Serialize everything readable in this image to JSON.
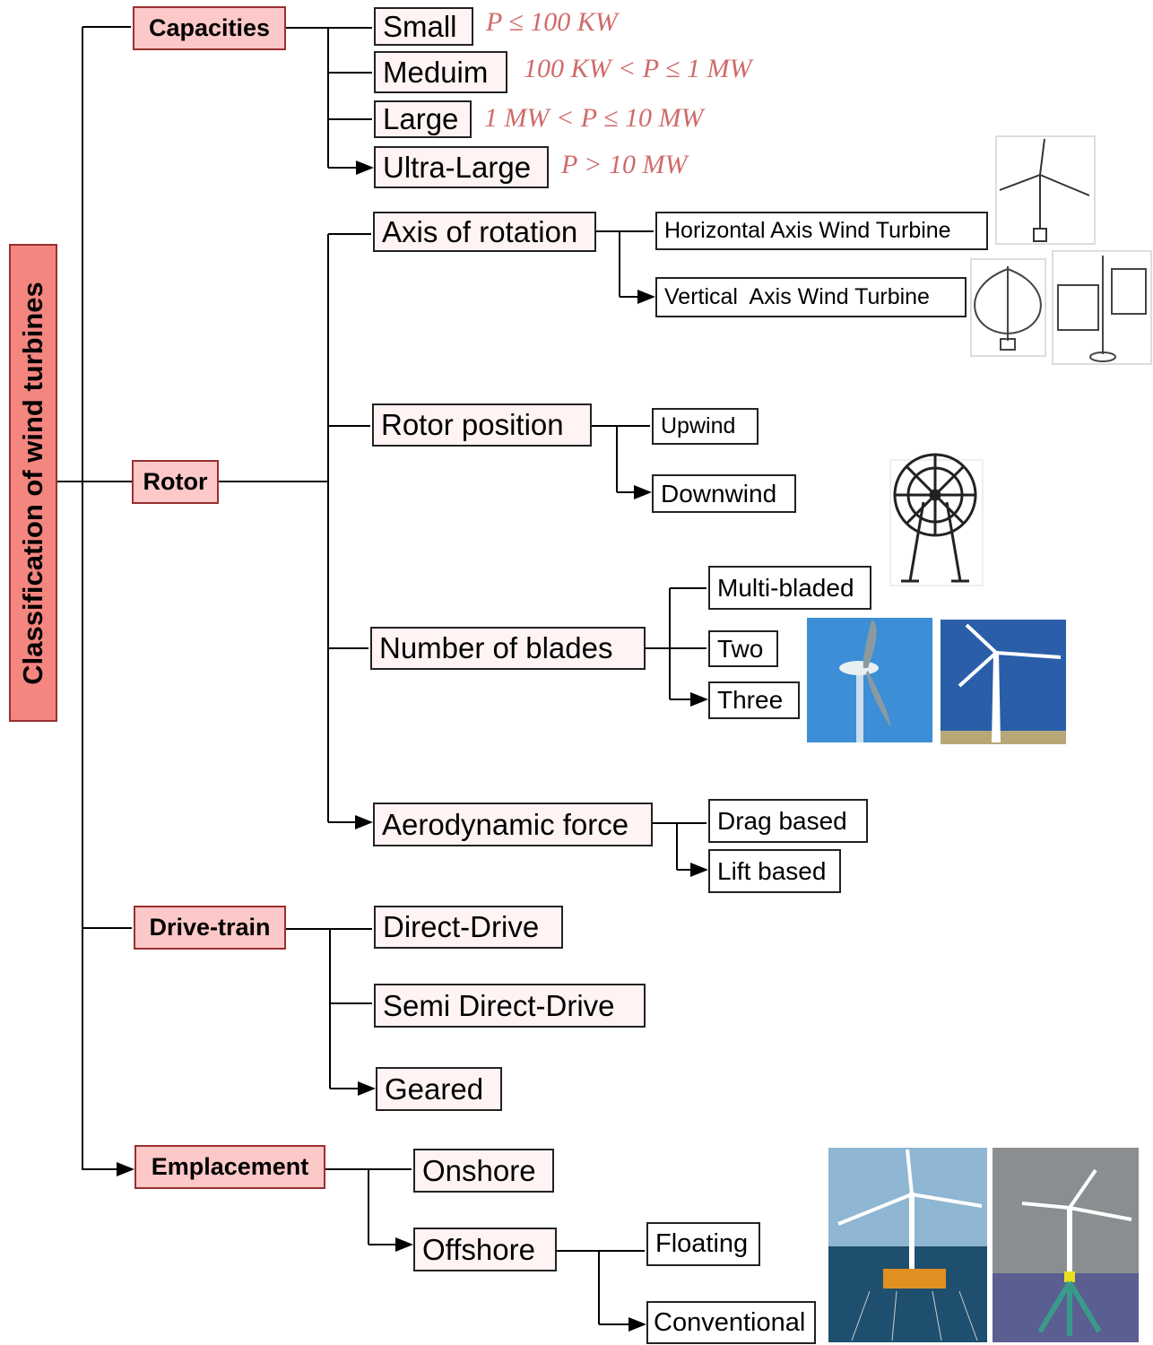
{
  "root": {
    "label": "Classification of wind turbines"
  },
  "capacities": {
    "label": "Capacities",
    "items": [
      {
        "label": "Small",
        "range": "P ≤ 100 KW"
      },
      {
        "label": "Meduim",
        "range": "100 KW < P ≤ 1 MW"
      },
      {
        "label": "Large",
        "range": "1 MW < P ≤ 10 MW"
      },
      {
        "label": "Ultra-Large",
        "range": "P > 10 MW"
      }
    ]
  },
  "rotor": {
    "label": "Rotor",
    "groups": [
      {
        "label": "Axis of rotation",
        "items": [
          "Horizontal Axis Wind Turbine",
          "Vertical  Axis Wind Turbine"
        ]
      },
      {
        "label": "Rotor position",
        "items": [
          "Upwind",
          "Downwind"
        ]
      },
      {
        "label": "Number of blades",
        "items": [
          "Multi-bladed",
          "Two",
          "Three"
        ]
      },
      {
        "label": "Aerodynamic force",
        "items": [
          "Drag based",
          "Lift based"
        ]
      }
    ]
  },
  "drive_train": {
    "label": "Drive-train",
    "items": [
      "Direct-Drive",
      "Semi Direct-Drive",
      "Geared"
    ]
  },
  "emplacement": {
    "label": "Emplacement",
    "items": [
      {
        "label": "Onshore"
      },
      {
        "label": "Offshore",
        "items": [
          "Floating",
          "Conventional"
        ]
      }
    ]
  }
}
